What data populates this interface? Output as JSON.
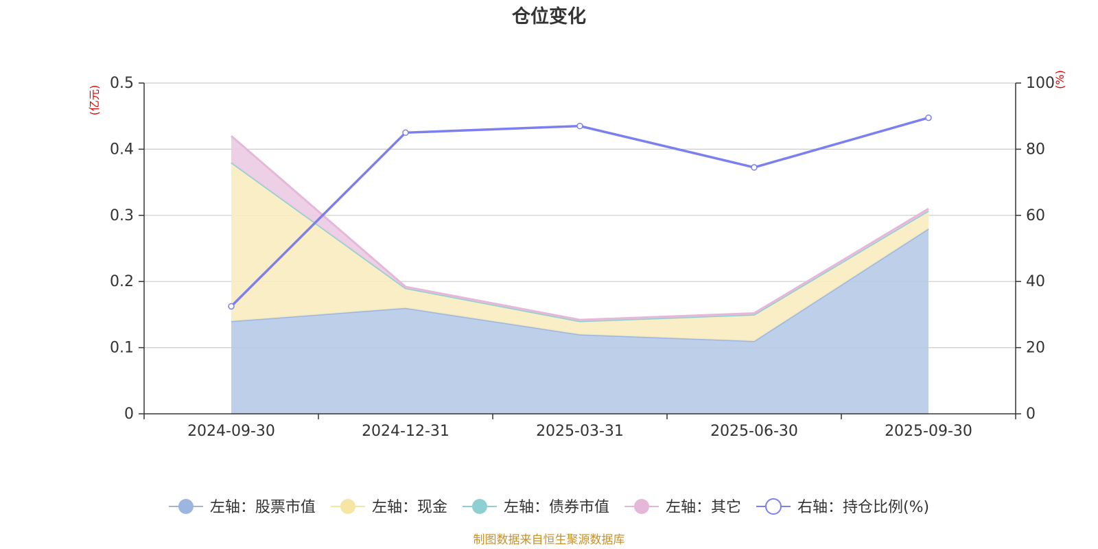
{
  "chart_data": {
    "type": "area",
    "title": "仓位变化",
    "x": [
      "2024-09-30",
      "2024-12-31",
      "2025-03-31",
      "2025-06-30",
      "2025-09-30"
    ],
    "left_axis": {
      "unit": "(亿元)",
      "ylim": [
        0,
        0.5
      ],
      "ticks": [
        "0",
        "0.1",
        "0.2",
        "0.3",
        "0.4",
        "0.5"
      ]
    },
    "right_axis": {
      "unit": "(%)",
      "ylim": [
        0,
        100
      ],
      "ticks": [
        "0",
        "20",
        "40",
        "60",
        "80",
        "100"
      ]
    },
    "series": [
      {
        "name": "左轴：股票市值",
        "axis": "left",
        "kind": "stacked-area",
        "color": "#9db6df",
        "fill": "#b9cbe8",
        "values": [
          0.14,
          0.16,
          0.12,
          0.11,
          0.28
        ]
      },
      {
        "name": "左轴：现金",
        "axis": "left",
        "kind": "stacked-area",
        "color": "#f6e6a4",
        "fill": "#f9edc0",
        "values": [
          0.24,
          0.03,
          0.02,
          0.04,
          0.027
        ]
      },
      {
        "name": "左轴：债券市值",
        "axis": "left",
        "kind": "stacked-area",
        "color": "#8ecfd2",
        "fill": "#b3e0e2",
        "values": [
          0,
          0,
          0,
          0,
          0
        ]
      },
      {
        "name": "左轴：其它",
        "axis": "left",
        "kind": "stacked-area",
        "color": "#e5b7d8",
        "fill": "#edcce4",
        "values": [
          0.04,
          0.002,
          0.002,
          0.002,
          0.003
        ]
      },
      {
        "name": "右轴：持仓比例(%)",
        "axis": "right",
        "kind": "line",
        "color": "#7b7ff0",
        "values": [
          32.5,
          85,
          87,
          74.5,
          89.5
        ]
      }
    ],
    "grid": true,
    "legend": "bottom-center"
  },
  "footer": {
    "source": "制图数据来自恒生聚源数据库"
  }
}
